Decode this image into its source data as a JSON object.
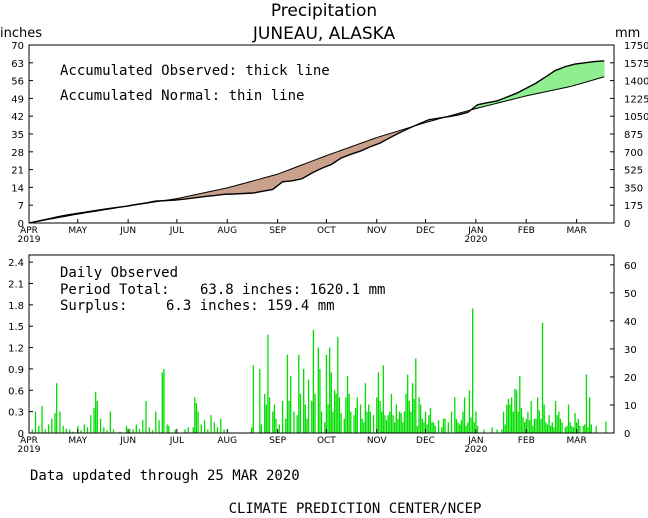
{
  "title": "Precipitation",
  "subtitle": "JUNEAU, ALASKA",
  "chart_data": [
    {
      "type": "area",
      "name": "accumulated",
      "y_left_label": "inches",
      "y_right_label": "mm",
      "y_left_ticks": [
        "0",
        "7",
        "14",
        "21",
        "28",
        "35",
        "42",
        "49",
        "56",
        "63",
        "70"
      ],
      "y_right_ticks": [
        "0",
        "175",
        "350",
        "525",
        "700",
        "875",
        "1050",
        "1225",
        "1400",
        "1575",
        "1750"
      ],
      "ylim": [
        0,
        70
      ],
      "x_labels": [
        "APR",
        "MAY",
        "JUN",
        "JUL",
        "AUG",
        "SEP",
        "OCT",
        "NOV",
        "DEC",
        "JAN",
        "FEB",
        "MAR"
      ],
      "year_labels": [
        "2019",
        "2020"
      ],
      "legend_observed": "Accumulated Observed: thick line",
      "legend_normal": "Accumulated Normal: thin line",
      "surplus_color": "#90ee90",
      "deficit_color": "#c8a08c",
      "observed": [
        [
          0,
          0
        ],
        [
          6,
          0.8
        ],
        [
          12,
          1.6
        ],
        [
          18,
          2.5
        ],
        [
          24,
          3.2
        ],
        [
          30,
          3.8
        ],
        [
          36,
          4.4
        ],
        [
          42,
          5.0
        ],
        [
          48,
          5.6
        ],
        [
          54,
          6.1
        ],
        [
          60,
          6.6
        ],
        [
          66,
          7.3
        ],
        [
          72,
          7.9
        ],
        [
          78,
          8.6
        ],
        [
          84,
          8.8
        ],
        [
          90,
          9.0
        ],
        [
          96,
          9.4
        ],
        [
          102,
          9.9
        ],
        [
          108,
          10.4
        ],
        [
          114,
          10.8
        ],
        [
          120,
          11.3
        ],
        [
          126,
          11.4
        ],
        [
          132,
          11.6
        ],
        [
          138,
          11.8
        ],
        [
          144,
          12.5
        ],
        [
          150,
          13.2
        ],
        [
          156,
          16.2
        ],
        [
          162,
          16.6
        ],
        [
          168,
          17.4
        ],
        [
          174,
          19.6
        ],
        [
          180,
          21.5
        ],
        [
          186,
          23.0
        ],
        [
          192,
          25.5
        ],
        [
          198,
          27.0
        ],
        [
          204,
          28.3
        ],
        [
          210,
          30.0
        ],
        [
          216,
          31.4
        ],
        [
          222,
          33.5
        ],
        [
          228,
          35.5
        ],
        [
          234,
          37.3
        ],
        [
          240,
          39.0
        ],
        [
          246,
          40.6
        ],
        [
          252,
          41.2
        ],
        [
          258,
          41.8
        ],
        [
          264,
          42.5
        ],
        [
          270,
          43.5
        ],
        [
          276,
          46.5
        ],
        [
          282,
          47.3
        ],
        [
          288,
          48.0
        ],
        [
          294,
          49.5
        ],
        [
          300,
          51.0
        ],
        [
          306,
          53.0
        ],
        [
          312,
          55.0
        ],
        [
          318,
          57.5
        ],
        [
          324,
          60.0
        ],
        [
          330,
          61.5
        ],
        [
          336,
          62.5
        ],
        [
          342,
          63.0
        ],
        [
          348,
          63.5
        ],
        [
          354,
          63.8
        ]
      ],
      "normal": [
        [
          0,
          0
        ],
        [
          30,
          3.5
        ],
        [
          61,
          6.7
        ],
        [
          91,
          9.6
        ],
        [
          122,
          13.8
        ],
        [
          153,
          19.2
        ],
        [
          183,
          26.5
        ],
        [
          214,
          33.6
        ],
        [
          244,
          39.5
        ],
        [
          275,
          45.0
        ],
        [
          306,
          50.0
        ],
        [
          334,
          53.8
        ],
        [
          354,
          57.5
        ]
      ]
    },
    {
      "type": "bar",
      "name": "daily",
      "y_left_ticks": [
        "0",
        "0.3",
        "0.6",
        "0.9",
        "1.2",
        "1.5",
        "1.8",
        "2.1",
        "2.4"
      ],
      "y_right_ticks": [
        "0",
        "10",
        "20",
        "30",
        "40",
        "50",
        "60"
      ],
      "ylim": [
        0,
        2.5
      ],
      "x_labels": [
        "APR",
        "MAY",
        "JUN",
        "JUL",
        "AUG",
        "SEP",
        "OCT",
        "NOV",
        "DEC",
        "JAN",
        "FEB",
        "MAR"
      ],
      "year_labels": [
        "2019",
        "2020"
      ],
      "header": "Daily Observed",
      "period_label": "Period Total:",
      "period_value": "63.8 inches:   1620.1 mm",
      "surplus_label": "Surplus:",
      "surplus_value": "6.3 inches:  159.4 mm",
      "bar_color": "#00dd00",
      "values": [
        [
          2,
          0.05
        ],
        [
          4,
          0.3
        ],
        [
          6,
          0.1
        ],
        [
          8,
          0.38
        ],
        [
          10,
          0.05
        ],
        [
          12,
          0.12
        ],
        [
          14,
          0.2
        ],
        [
          16,
          0.28
        ],
        [
          17,
          0.7
        ],
        [
          19,
          0.3
        ],
        [
          21,
          0.1
        ],
        [
          23,
          0.06
        ],
        [
          25,
          0.05
        ],
        [
          27,
          0.02
        ],
        [
          30,
          0.1
        ],
        [
          32,
          0.04
        ],
        [
          34,
          0.12
        ],
        [
          36,
          0.08
        ],
        [
          38,
          0.25
        ],
        [
          40,
          0.35
        ],
        [
          41,
          0.58
        ],
        [
          42,
          0.45
        ],
        [
          44,
          0.2
        ],
        [
          46,
          0.08
        ],
        [
          48,
          0.04
        ],
        [
          50,
          0.3
        ],
        [
          52,
          0.05
        ],
        [
          56,
          0.02
        ],
        [
          60,
          0.1
        ],
        [
          62,
          0.06
        ],
        [
          64,
          0.05
        ],
        [
          66,
          0.12
        ],
        [
          68,
          0.06
        ],
        [
          70,
          0.18
        ],
        [
          72,
          0.45
        ],
        [
          74,
          0.08
        ],
        [
          76,
          0.04
        ],
        [
          78,
          0.3
        ],
        [
          80,
          0.18
        ],
        [
          82,
          0.85
        ],
        [
          83,
          0.9
        ],
        [
          85,
          0.12
        ],
        [
          86,
          0.1
        ],
        [
          90,
          0.05
        ],
        [
          96,
          0.05
        ],
        [
          98,
          0.08
        ],
        [
          101,
          0.08
        ],
        [
          102,
          0.5
        ],
        [
          103,
          0.42
        ],
        [
          104,
          0.3
        ],
        [
          106,
          0.12
        ],
        [
          108,
          0.18
        ],
        [
          110,
          0.05
        ],
        [
          112,
          0.25
        ],
        [
          114,
          0.15
        ],
        [
          116,
          0.08
        ],
        [
          118,
          0.2
        ],
        [
          120,
          0.05
        ],
        [
          137,
          0.08
        ],
        [
          138,
          0.95
        ],
        [
          142,
          0.9
        ],
        [
          143,
          0.12
        ],
        [
          145,
          0.55
        ],
        [
          146,
          0.4
        ],
        [
          147,
          1.38
        ],
        [
          148,
          0.5
        ],
        [
          150,
          0.3
        ],
        [
          151,
          0.4
        ],
        [
          152,
          0.2
        ],
        [
          154,
          0.12
        ],
        [
          156,
          0.45
        ],
        [
          158,
          0.2
        ],
        [
          159,
          1.1
        ],
        [
          160,
          0.45
        ],
        [
          161,
          0.8
        ],
        [
          163,
          0.3
        ],
        [
          165,
          0.25
        ],
        [
          166,
          1.1
        ],
        [
          167,
          0.55
        ],
        [
          169,
          0.9
        ],
        [
          170,
          0.4
        ],
        [
          171,
          0.2
        ],
        [
          172,
          0.75
        ],
        [
          174,
          0.45
        ],
        [
          175,
          1.45
        ],
        [
          176,
          0.55
        ],
        [
          178,
          1.2
        ],
        [
          179,
          0.9
        ],
        [
          180,
          0.3
        ],
        [
          182,
          0.15
        ],
        [
          183,
          1.1
        ],
        [
          184,
          0.4
        ],
        [
          185,
          1.2
        ],
        [
          186,
          0.85
        ],
        [
          187,
          0.3
        ],
        [
          188,
          0.6
        ],
        [
          189,
          0.55
        ],
        [
          190,
          1.35
        ],
        [
          191,
          0.5
        ],
        [
          192,
          0.28
        ],
        [
          194,
          0.2
        ],
        [
          195,
          0.5
        ],
        [
          196,
          0.8
        ],
        [
          197,
          0.55
        ],
        [
          198,
          0.3
        ],
        [
          200,
          0.25
        ],
        [
          201,
          0.35
        ],
        [
          202,
          0.5
        ],
        [
          204,
          0.4
        ],
        [
          205,
          0.2
        ],
        [
          206,
          0.15
        ],
        [
          207,
          0.7
        ],
        [
          208,
          0.3
        ],
        [
          209,
          0.4
        ],
        [
          210,
          0.3
        ],
        [
          212,
          0.25
        ],
        [
          214,
          0.5
        ],
        [
          215,
          0.85
        ],
        [
          216,
          0.45
        ],
        [
          217,
          0.3
        ],
        [
          218,
          0.95
        ],
        [
          219,
          0.25
        ],
        [
          220,
          0.18
        ],
        [
          221,
          0.25
        ],
        [
          222,
          0.3
        ],
        [
          223,
          0.55
        ],
        [
          224,
          0.25
        ],
        [
          225,
          0.15
        ],
        [
          226,
          0.4
        ],
        [
          227,
          0.2
        ],
        [
          228,
          0.3
        ],
        [
          229,
          0.28
        ],
        [
          230,
          0.15
        ],
        [
          231,
          0.3
        ],
        [
          232,
          0.55
        ],
        [
          233,
          0.82
        ],
        [
          234,
          0.45
        ],
        [
          235,
          0.3
        ],
        [
          236,
          0.7
        ],
        [
          237,
          0.48
        ],
        [
          238,
          1.05
        ],
        [
          239,
          0.1
        ],
        [
          240,
          0.5
        ],
        [
          241,
          0.4
        ],
        [
          242,
          0.2
        ],
        [
          243,
          0.15
        ],
        [
          244,
          0.3
        ],
        [
          245,
          0.12
        ],
        [
          246,
          0.25
        ],
        [
          247,
          0.35
        ],
        [
          248,
          0.15
        ],
        [
          249,
          0.15
        ],
        [
          250,
          0.1
        ],
        [
          252,
          0.18
        ],
        [
          254,
          0.08
        ],
        [
          255,
          0.2
        ],
        [
          256,
          0.2
        ],
        [
          258,
          0.15
        ],
        [
          260,
          0.3
        ],
        [
          262,
          0.5
        ],
        [
          263,
          0.2
        ],
        [
          264,
          0.15
        ],
        [
          265,
          0.12
        ],
        [
          266,
          0.18
        ],
        [
          267,
          0.3
        ],
        [
          268,
          0.5
        ],
        [
          269,
          0.1
        ],
        [
          270,
          0.15
        ],
        [
          271,
          0.6
        ],
        [
          272,
          0.22
        ],
        [
          273,
          1.75
        ],
        [
          274,
          0.15
        ],
        [
          275,
          0.3
        ],
        [
          276,
          0.1
        ],
        [
          280,
          0.05
        ],
        [
          285,
          0.08
        ],
        [
          288,
          0.05
        ],
        [
          291,
          0.05
        ],
        [
          292,
          0.3
        ],
        [
          293,
          0.12
        ],
        [
          294,
          0.4
        ],
        [
          295,
          0.48
        ],
        [
          296,
          0.4
        ],
        [
          297,
          0.5
        ],
        [
          298,
          0.3
        ],
        [
          299,
          0.62
        ],
        [
          300,
          0.6
        ],
        [
          301,
          0.3
        ],
        [
          302,
          0.8
        ],
        [
          303,
          0.35
        ],
        [
          304,
          0.22
        ],
        [
          305,
          0.15
        ],
        [
          306,
          0.2
        ],
        [
          307,
          0.3
        ],
        [
          308,
          0.18
        ],
        [
          309,
          0.45
        ],
        [
          310,
          0.1
        ],
        [
          311,
          0.2
        ],
        [
          312,
          0.2
        ],
        [
          313,
          0.5
        ],
        [
          314,
          0.32
        ],
        [
          315,
          0.2
        ],
        [
          316,
          1.55
        ],
        [
          317,
          0.4
        ],
        [
          318,
          0.15
        ],
        [
          319,
          0.12
        ],
        [
          320,
          0.25
        ],
        [
          321,
          0.1
        ],
        [
          322,
          0.15
        ],
        [
          323,
          0.08
        ],
        [
          324,
          0.45
        ],
        [
          325,
          0.25
        ],
        [
          326,
          0.3
        ],
        [
          327,
          0.2
        ],
        [
          328,
          0.15
        ],
        [
          330,
          0.08
        ],
        [
          331,
          0.1
        ],
        [
          332,
          0.4
        ],
        [
          333,
          0.15
        ],
        [
          334,
          0.1
        ],
        [
          335,
          0.08
        ],
        [
          336,
          0.28
        ],
        [
          337,
          0.15
        ],
        [
          338,
          0.2
        ],
        [
          339,
          0.1
        ],
        [
          341,
          0.1
        ],
        [
          342,
          0.12
        ],
        [
          343,
          0.82
        ],
        [
          344,
          0.08
        ],
        [
          345,
          0.5
        ],
        [
          346,
          0.12
        ],
        [
          349,
          0.1
        ],
        [
          355,
          0.16
        ]
      ]
    }
  ],
  "footer_updated": "Data updated through 25 MAR 2020",
  "footer_center": "CLIMATE PREDICTION CENTER/NCEP"
}
